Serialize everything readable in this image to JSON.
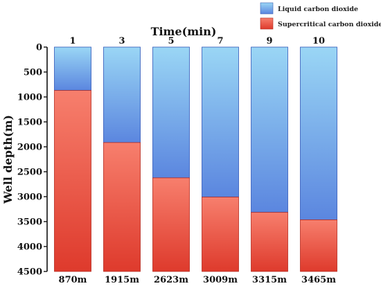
{
  "chart_data": {
    "type": "bar",
    "subtype": "stacked",
    "xlabel": "Time(min)",
    "ylabel": "Well depth(m)",
    "ylim": [
      0,
      4500
    ],
    "y_inverted": true,
    "y_ticks": [
      "0",
      "500",
      "1000",
      "1500",
      "2000",
      "2500",
      "3000",
      "3500",
      "4000",
      "4500"
    ],
    "categories": [
      "1",
      "3",
      "5",
      "7",
      "9",
      "10"
    ],
    "bottom_labels": [
      "870m",
      "1915m",
      "2623m",
      "3009m",
      "3315m",
      "3465m"
    ],
    "series": [
      {
        "name": "Liquid carbon dioxide",
        "values": [
          870,
          1915,
          2623,
          3009,
          3315,
          3465
        ]
      },
      {
        "name": "Supercritical carbon dioxide",
        "values": [
          3630,
          2585,
          1877,
          1491,
          1185,
          1035
        ]
      }
    ],
    "colors": {
      "liquid_top": "#9ad6f5",
      "liquid_bottom": "#5b86df",
      "supercritical_top": "#f77f6d",
      "supercritical_bottom": "#de3a2c"
    },
    "legend_position": "top-right",
    "grid": false
  }
}
